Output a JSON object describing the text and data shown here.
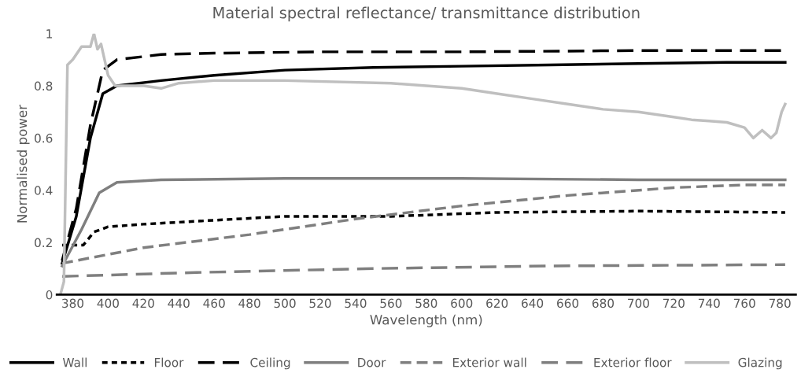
{
  "chart_data": {
    "type": "line",
    "title": "Material spectral reflectance/ transmittance distribution",
    "xlabel": "Wavelength (nm)",
    "ylabel": "Normalised power",
    "xlim": [
      371,
      789
    ],
    "xticks": [
      380,
      400,
      420,
      440,
      460,
      480,
      500,
      520,
      540,
      560,
      580,
      600,
      620,
      640,
      660,
      680,
      700,
      720,
      740,
      760,
      780
    ],
    "ylim": [
      0,
      1
    ],
    "yticks": [
      0,
      0.2,
      0.4,
      0.6,
      0.8,
      1
    ],
    "grid": false,
    "legend": "bottom",
    "series": [
      {
        "name": "Wall",
        "color": "#000000",
        "line_style": "solid",
        "x": [
          374,
          382,
          390,
          397,
          405,
          430,
          460,
          500,
          550,
          600,
          650,
          700,
          750,
          783
        ],
        "values": [
          0.12,
          0.3,
          0.6,
          0.77,
          0.8,
          0.82,
          0.84,
          0.86,
          0.87,
          0.875,
          0.88,
          0.885,
          0.89,
          0.89
        ]
      },
      {
        "name": "Floor",
        "color": "#000000",
        "line_style": "dotted",
        "x": [
          374,
          386,
          392,
          400,
          420,
          460,
          500,
          560,
          620,
          700,
          783
        ],
        "values": [
          0.19,
          0.19,
          0.24,
          0.26,
          0.27,
          0.285,
          0.3,
          0.3,
          0.315,
          0.32,
          0.315
        ]
      },
      {
        "name": "Ceiling",
        "color": "#000000",
        "line_style": "longdash",
        "x": [
          374,
          382,
          390,
          397,
          405,
          430,
          460,
          520,
          600,
          700,
          783
        ],
        "values": [
          0.13,
          0.33,
          0.65,
          0.86,
          0.9,
          0.92,
          0.925,
          0.93,
          0.93,
          0.935,
          0.935
        ]
      },
      {
        "name": "Door",
        "color": "#7f7f7f",
        "line_style": "solid",
        "x": [
          374,
          385,
          395,
          405,
          430,
          500,
          600,
          700,
          783
        ],
        "values": [
          0.11,
          0.25,
          0.39,
          0.43,
          0.44,
          0.445,
          0.445,
          0.44,
          0.44
        ]
      },
      {
        "name": "Exterior wall",
        "color": "#7f7f7f",
        "line_style": "dashed",
        "x": [
          374,
          420,
          480,
          540,
          600,
          660,
          720,
          760,
          783
        ],
        "values": [
          0.12,
          0.18,
          0.23,
          0.29,
          0.34,
          0.38,
          0.41,
          0.42,
          0.42
        ]
      },
      {
        "name": "Exterior floor",
        "color": "#7f7f7f",
        "line_style": "longdash",
        "x": [
          374,
          450,
          550,
          650,
          783
        ],
        "values": [
          0.07,
          0.085,
          0.1,
          0.11,
          0.115
        ]
      },
      {
        "name": "Glazing",
        "color": "#bfbfbf",
        "line_style": "solid",
        "x": [
          373,
          375,
          377,
          380,
          385,
          390,
          392,
          394,
          396,
          398,
          400,
          404,
          420,
          430,
          440,
          460,
          500,
          560,
          580,
          600,
          620,
          640,
          660,
          680,
          700,
          720,
          730,
          740,
          750,
          760,
          765,
          770,
          775,
          778,
          781,
          783
        ],
        "values": [
          0,
          0.05,
          0.88,
          0.9,
          0.95,
          0.95,
          1.0,
          0.94,
          0.96,
          0.9,
          0.84,
          0.8,
          0.8,
          0.79,
          0.81,
          0.82,
          0.82,
          0.81,
          0.8,
          0.79,
          0.77,
          0.75,
          0.73,
          0.71,
          0.7,
          0.68,
          0.67,
          0.665,
          0.66,
          0.64,
          0.6,
          0.63,
          0.6,
          0.62,
          0.7,
          0.73
        ]
      }
    ]
  }
}
